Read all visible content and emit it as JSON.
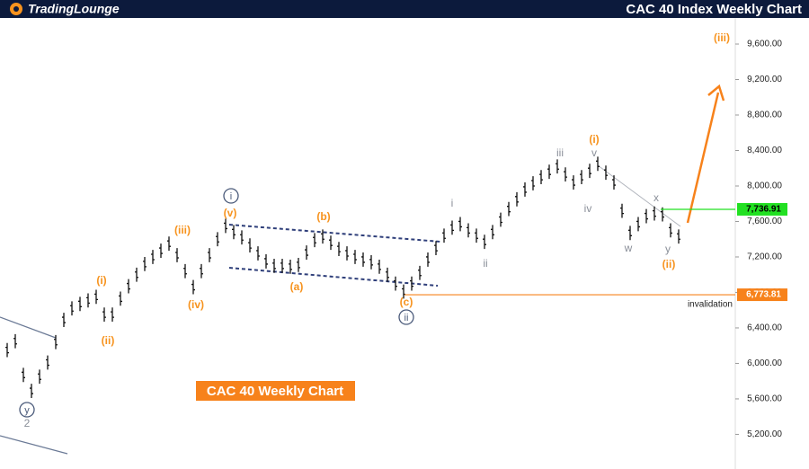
{
  "header": {
    "logo": "TradingLounge"
  },
  "chart_data": {
    "type": "ohlc",
    "title": "CAC 40 Index Weekly Chart",
    "subtitle": "CAC 40 Weekly Chart",
    "ylim": [
      4850,
      9900
    ],
    "yticks": [
      {
        "value": 5200,
        "label": "5,200.00"
      },
      {
        "value": 5600,
        "label": "5,600.00"
      },
      {
        "value": 6000,
        "label": "6,000.00"
      },
      {
        "value": 6400,
        "label": "6,400.00"
      },
      {
        "value": 6800,
        "label": "6,800.00"
      },
      {
        "value": 7200,
        "label": "7,200.00"
      },
      {
        "value": 7600,
        "label": "7,600.00"
      },
      {
        "value": 8000,
        "label": "8,000.00"
      },
      {
        "value": 8400,
        "label": "8,400.00"
      },
      {
        "value": 8800,
        "label": "8,800.00"
      },
      {
        "value": 9200,
        "label": "9,200.00"
      },
      {
        "value": 9600,
        "label": "9,600.00"
      }
    ],
    "series": [
      {
        "color": "#111111",
        "high": [
          6230,
          6330,
          5950,
          5770,
          5930,
          6090,
          6320,
          6570,
          6700,
          6750,
          6790,
          6830,
          6630,
          6630,
          6810,
          6950,
          7080,
          7200,
          7280,
          7350,
          7430,
          7300,
          7120,
          6940,
          7120,
          7300,
          7480,
          7630,
          7560,
          7500,
          7410,
          7320,
          7230,
          7180,
          7180,
          7170,
          7190,
          7330,
          7470,
          7510,
          7440,
          7370,
          7320,
          7280,
          7250,
          7220,
          7170,
          7080,
          6980,
          6890,
          6980,
          7100,
          7250,
          7380,
          7520,
          7610,
          7650,
          7580,
          7520,
          7450,
          7560,
          7700,
          7820,
          7930,
          8040,
          8110,
          8180,
          8240,
          8300,
          8210,
          8120,
          8180,
          8250,
          8330,
          8230,
          8120,
          7800,
          7550,
          7650,
          7740,
          7770,
          7760,
          7580,
          7510
        ],
        "low": [
          6070,
          6170,
          5790,
          5610,
          5770,
          5930,
          6160,
          6410,
          6540,
          6590,
          6630,
          6670,
          6470,
          6470,
          6650,
          6790,
          6920,
          7040,
          7120,
          7190,
          7270,
          7140,
          6960,
          6780,
          6960,
          7140,
          7320,
          7470,
          7400,
          7340,
          7250,
          7160,
          7070,
          7020,
          7020,
          7010,
          7030,
          7170,
          7310,
          7350,
          7280,
          7210,
          7160,
          7120,
          7090,
          7060,
          7010,
          6920,
          6820,
          6730,
          6820,
          6940,
          7090,
          7220,
          7360,
          7450,
          7490,
          7420,
          7360,
          7290,
          7400,
          7540,
          7660,
          7770,
          7880,
          7950,
          8020,
          8080,
          8140,
          8050,
          7960,
          8020,
          8090,
          8170,
          8070,
          7960,
          7640,
          7390,
          7490,
          7580,
          7610,
          7600,
          7420,
          7350
        ]
      }
    ],
    "levels": [
      {
        "value": 7736.91,
        "label": "7,736.91",
        "color": "#22e022"
      },
      {
        "value": 6773.81,
        "label": "6,773.81",
        "color": "#f7821b"
      }
    ],
    "level_note": "invalidation",
    "waves_orange": [
      "(iii)",
      "(i)",
      "(ii)",
      "(iii)",
      "(iv)",
      "(v)",
      "(a)",
      "(b)",
      "(c)",
      "(i)",
      "(ii)"
    ],
    "waves_gray": [
      "iii",
      "v",
      "iv",
      "i",
      "ii",
      "x",
      "w",
      "y",
      "2"
    ],
    "waves_circled": [
      "i",
      "ii",
      "y"
    ]
  }
}
